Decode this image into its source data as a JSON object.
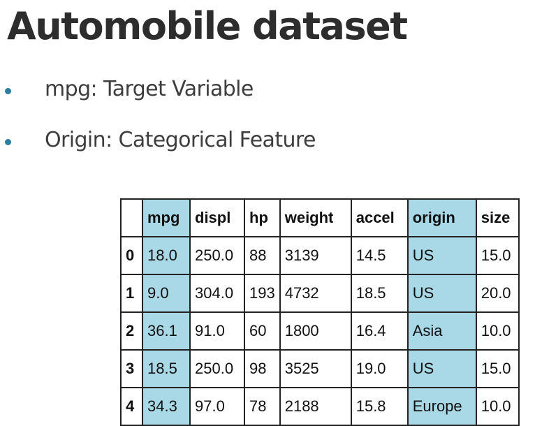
{
  "title": "Automobile dataset",
  "bullets": [
    {
      "text": "mpg: Target Variable"
    },
    {
      "text": "Origin: Categorical Feature"
    }
  ],
  "table": {
    "header_index": "",
    "columns": [
      "mpg",
      "displ",
      "hp",
      "weight",
      "accel",
      "origin",
      "size"
    ],
    "highlighted_columns": [
      "mpg",
      "origin"
    ],
    "highlight_color": "#a9d9e7",
    "rows": [
      {
        "index": "0",
        "mpg": "18.0",
        "displ": "250.0",
        "hp": "88",
        "weight": "3139",
        "accel": "14.5",
        "origin": "US",
        "size": "15.0"
      },
      {
        "index": "1",
        "mpg": "9.0",
        "displ": "304.0",
        "hp": "193",
        "weight": "4732",
        "accel": "18.5",
        "origin": "US",
        "size": "20.0"
      },
      {
        "index": "2",
        "mpg": "36.1",
        "displ": "91.0",
        "hp": "60",
        "weight": "1800",
        "accel": "16.4",
        "origin": "Asia",
        "size": "10.0"
      },
      {
        "index": "3",
        "mpg": "18.5",
        "displ": "250.0",
        "hp": "98",
        "weight": "3525",
        "accel": "19.0",
        "origin": "US",
        "size": "15.0"
      },
      {
        "index": "4",
        "mpg": "34.3",
        "displ": "97.0",
        "hp": "78",
        "weight": "2188",
        "accel": "15.8",
        "origin": "Europe",
        "size": "10.0"
      }
    ]
  },
  "colors": {
    "bullet": "#2e7ea2",
    "title": "#2d2d2d",
    "text": "#3d3d3d"
  }
}
